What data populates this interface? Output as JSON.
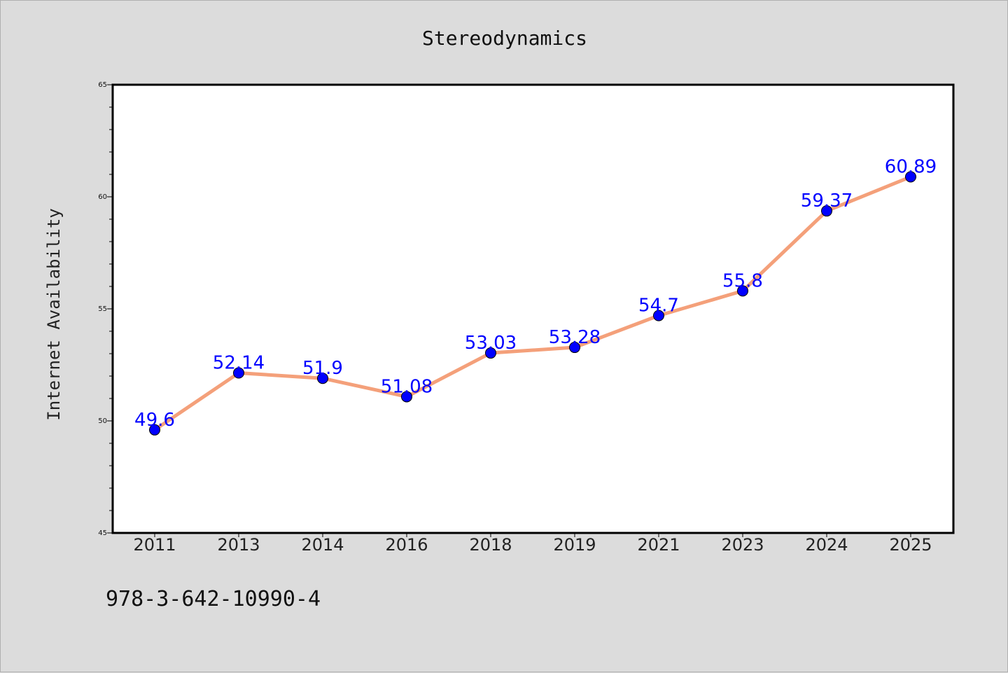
{
  "chart_data": {
    "type": "line",
    "title": "Stereodynamics",
    "xlabel": "",
    "ylabel": "Internet Availability",
    "categories": [
      "2011",
      "2013",
      "2014",
      "2016",
      "2018",
      "2019",
      "2021",
      "2023",
      "2024",
      "2025"
    ],
    "series": [
      {
        "values": [
          49.6,
          52.14,
          51.9,
          51.08,
          53.03,
          53.28,
          54.7,
          55.8,
          59.37,
          60.89
        ],
        "labels": [
          "49.6",
          "52.14",
          "51.9",
          "51.08",
          "53.03",
          "53.28",
          "54.7",
          "55.8",
          "59.37",
          "60.89"
        ],
        "line_color": "#f4a07a",
        "marker_color": "#0000ff"
      }
    ],
    "ylim": [
      45,
      65
    ],
    "yticks": [
      "45",
      "50",
      "55",
      "60",
      "65"
    ],
    "grid": false,
    "label_color": "#0000ff"
  },
  "footer": {
    "note": "978-3-642-10990-4"
  }
}
